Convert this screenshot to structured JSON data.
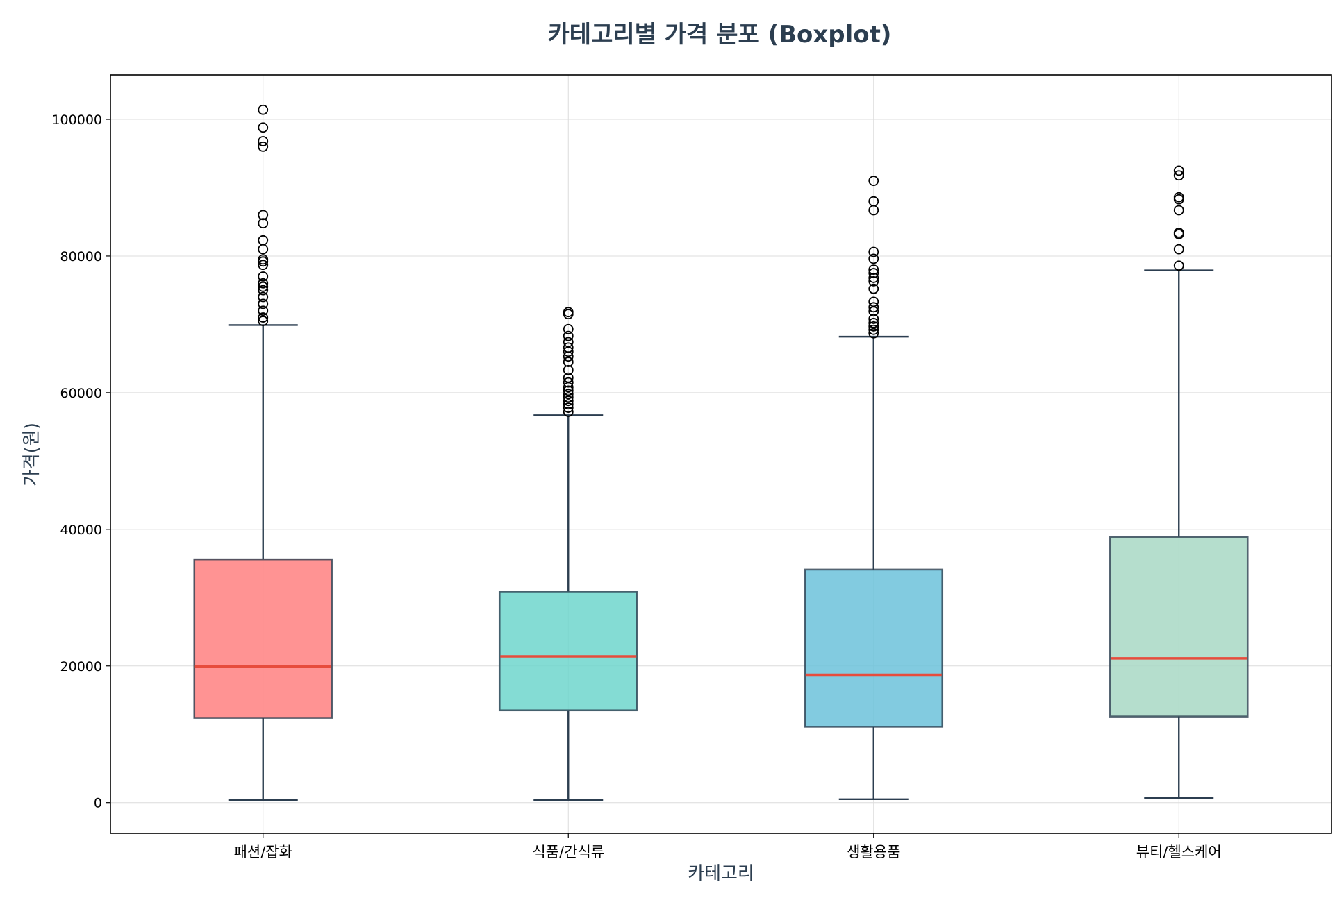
{
  "chart_data": {
    "type": "boxplot",
    "title": "카테고리별 가격 분포 (Boxplot)",
    "xlabel": "카테고리",
    "ylabel": "가격(원)",
    "ylim": [
      -4500,
      106500
    ],
    "yticks": [
      0,
      20000,
      40000,
      60000,
      80000,
      100000
    ],
    "ytick_labels": [
      "0",
      "20000",
      "40000",
      "60000",
      "80000",
      "100000"
    ],
    "grid": true,
    "categories": [
      "패션/잡화",
      "식품/간식류",
      "생활용품",
      "뷰티/헬스케어"
    ],
    "colors": [
      "#ff8080",
      "#6ed6cc",
      "#6cc2db",
      "#a8d8c4"
    ],
    "median_color": "#e74c3c",
    "edge_color": "#2c3e50",
    "boxes": [
      {
        "whisker_low": 400,
        "q1": 12400,
        "median": 19900,
        "q3": 35600,
        "whisker_high": 69900,
        "outliers": [
          70500,
          71000,
          72000,
          73000,
          74000,
          75000,
          75500,
          76000,
          77000,
          78700,
          79200,
          79500,
          81000,
          82300,
          84800,
          86000,
          96000,
          96800,
          98800,
          101400
        ]
      },
      {
        "whisker_low": 400,
        "q1": 13500,
        "median": 21400,
        "q3": 30900,
        "whisker_high": 56700,
        "outliers": [
          57200,
          57800,
          58300,
          58800,
          59300,
          59800,
          60300,
          60800,
          61500,
          62200,
          63300,
          64500,
          65300,
          66000,
          66600,
          67400,
          68300,
          69300,
          71500,
          71800
        ]
      },
      {
        "whisker_low": 500,
        "q1": 11100,
        "median": 18700,
        "q3": 34100,
        "whisker_high": 68200,
        "outliers": [
          68700,
          69200,
          69700,
          70200,
          70800,
          71900,
          72500,
          73300,
          75200,
          76300,
          76800,
          77500,
          78000,
          79600,
          80600,
          86700,
          88000,
          91000
        ]
      },
      {
        "whisker_low": 700,
        "q1": 12600,
        "median": 21100,
        "q3": 38900,
        "whisker_high": 77900,
        "outliers": [
          78600,
          81000,
          83200,
          83400,
          86700,
          88300,
          88600,
          91800,
          92500
        ]
      }
    ]
  }
}
